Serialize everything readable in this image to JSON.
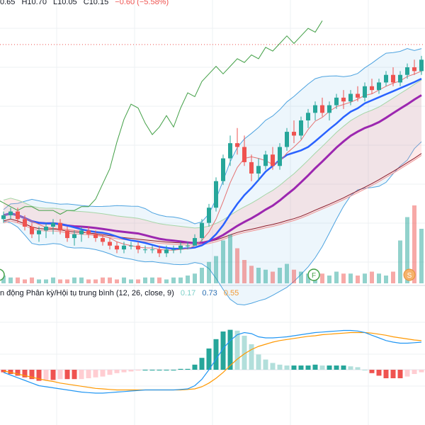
{
  "ohlc": {
    "open": "0.65",
    "high": "H10.70",
    "low": "L10.05",
    "close": "C10.15",
    "change": "−0.60 (−5.58%)"
  },
  "macd": {
    "label": "n động Phân kỳ/Hội tụ trung bình (12, 26, close, 9)",
    "values": [
      "0.17",
      "0.73",
      "0.55"
    ]
  },
  "markers": {
    "f": "F",
    "s": "S"
  },
  "colors": {
    "up": "#26a69a",
    "down": "#ef5350",
    "ma_fast": "#2962ff",
    "ma_slow": "#9c27b0",
    "ma_long": "#8d1c2a",
    "bollinger": "#4da3e0",
    "lagging": "#43a047",
    "macd_line": "#2196f3",
    "signal_line": "#ff9800"
  },
  "chart_data": {
    "type": "line",
    "candles": [
      [
        10.6,
        10.8,
        10.5,
        10.7
      ],
      [
        10.7,
        10.9,
        10.6,
        10.8
      ],
      [
        10.8,
        10.9,
        10.5,
        10.6
      ],
      [
        10.6,
        10.7,
        10.3,
        10.4
      ],
      [
        10.4,
        10.5,
        10.1,
        10.2
      ],
      [
        10.2,
        10.4,
        10.0,
        10.3
      ],
      [
        10.3,
        10.5,
        10.1,
        10.4
      ],
      [
        10.4,
        10.6,
        10.2,
        10.5
      ],
      [
        10.5,
        10.6,
        10.2,
        10.3
      ],
      [
        10.3,
        10.4,
        10.0,
        10.1
      ],
      [
        10.1,
        10.3,
        9.9,
        10.2
      ],
      [
        10.2,
        10.4,
        10.0,
        10.3
      ],
      [
        10.3,
        10.4,
        10.1,
        10.2
      ],
      [
        10.2,
        10.3,
        10.0,
        10.1
      ],
      [
        10.1,
        10.2,
        9.9,
        10.0
      ],
      [
        10.0,
        10.1,
        9.8,
        9.9
      ],
      [
        9.9,
        10.0,
        9.7,
        9.8
      ],
      [
        9.8,
        10.0,
        9.7,
        9.9
      ],
      [
        9.9,
        10.0,
        9.8,
        9.9
      ],
      [
        9.9,
        10.0,
        9.7,
        9.8
      ],
      [
        9.8,
        9.9,
        9.7,
        9.8
      ],
      [
        9.8,
        9.9,
        9.7,
        9.8
      ],
      [
        9.8,
        9.9,
        9.6,
        9.7
      ],
      [
        9.7,
        9.9,
        9.6,
        9.8
      ],
      [
        9.8,
        9.9,
        9.7,
        9.8
      ],
      [
        9.8,
        10.0,
        9.7,
        9.9
      ],
      [
        9.9,
        10.0,
        9.8,
        9.9
      ],
      [
        9.9,
        10.2,
        9.9,
        10.1
      ],
      [
        10.1,
        10.6,
        10.0,
        10.5
      ],
      [
        10.5,
        11.0,
        10.4,
        10.9
      ],
      [
        10.9,
        11.7,
        10.8,
        11.6
      ],
      [
        11.6,
        12.3,
        11.5,
        12.2
      ],
      [
        12.2,
        12.8,
        12.0,
        12.6
      ],
      [
        12.6,
        13.0,
        12.3,
        12.5
      ],
      [
        12.5,
        12.8,
        12.0,
        12.1
      ],
      [
        12.1,
        12.3,
        11.6,
        11.8
      ],
      [
        11.8,
        12.2,
        11.6,
        12.0
      ],
      [
        12.0,
        12.4,
        11.9,
        12.3
      ],
      [
        12.3,
        12.5,
        11.9,
        12.0
      ],
      [
        12.0,
        12.6,
        11.9,
        12.5
      ],
      [
        12.5,
        13.0,
        12.4,
        12.9
      ],
      [
        12.9,
        13.2,
        12.6,
        12.8
      ],
      [
        12.8,
        13.3,
        12.7,
        13.2
      ],
      [
        13.2,
        13.5,
        13.0,
        13.4
      ],
      [
        13.4,
        13.7,
        13.2,
        13.6
      ],
      [
        13.6,
        13.8,
        13.3,
        13.4
      ],
      [
        13.4,
        13.7,
        13.2,
        13.6
      ],
      [
        13.6,
        13.9,
        13.5,
        13.8
      ],
      [
        13.8,
        14.0,
        13.5,
        13.7
      ],
      [
        13.7,
        14.0,
        13.6,
        13.9
      ],
      [
        13.9,
        14.1,
        13.7,
        13.8
      ],
      [
        13.8,
        14.2,
        13.7,
        14.1
      ],
      [
        14.1,
        14.3,
        13.9,
        14.0
      ],
      [
        14.0,
        14.3,
        13.9,
        14.2
      ],
      [
        14.2,
        14.5,
        14.1,
        14.4
      ],
      [
        14.4,
        14.6,
        14.1,
        14.2
      ],
      [
        14.2,
        14.5,
        14.1,
        14.4
      ],
      [
        14.4,
        14.7,
        14.3,
        14.6
      ],
      [
        14.6,
        14.8,
        14.4,
        14.5
      ],
      [
        14.5,
        14.9,
        14.4,
        14.8
      ]
    ],
    "volume": [
      4,
      3,
      3,
      2,
      3,
      2,
      2,
      3,
      2,
      2,
      3,
      3,
      2,
      2,
      3,
      3,
      2,
      3,
      2,
      2,
      3,
      3,
      3,
      2,
      3,
      3,
      4,
      5,
      8,
      11,
      14,
      22,
      25,
      18,
      12,
      9,
      8,
      7,
      6,
      8,
      10,
      7,
      6,
      5,
      6,
      5,
      4,
      6,
      5,
      5,
      4,
      5,
      6,
      5,
      4,
      6,
      22,
      34,
      40,
      28
    ],
    "macd_line": [
      -0.05,
      -0.1,
      -0.15,
      -0.2,
      -0.25,
      -0.3,
      -0.32,
      -0.34,
      -0.36,
      -0.38,
      -0.4,
      -0.42,
      -0.43,
      -0.44,
      -0.44,
      -0.43,
      -0.42,
      -0.41,
      -0.4,
      -0.39,
      -0.38,
      -0.38,
      -0.38,
      -0.38,
      -0.38,
      -0.37,
      -0.36,
      -0.3,
      -0.18,
      0.0,
      0.2,
      0.4,
      0.55,
      0.66,
      0.7,
      0.68,
      0.62,
      0.6,
      0.6,
      0.61,
      0.62,
      0.64,
      0.66,
      0.68,
      0.7,
      0.71,
      0.72,
      0.73,
      0.74,
      0.74,
      0.73,
      0.7,
      0.65,
      0.6,
      0.55,
      0.52,
      0.5,
      0.5,
      0.51,
      0.52
    ],
    "signal_line": [
      -0.02,
      -0.05,
      -0.08,
      -0.11,
      -0.14,
      -0.17,
      -0.2,
      -0.22,
      -0.25,
      -0.27,
      -0.29,
      -0.31,
      -0.33,
      -0.35,
      -0.36,
      -0.37,
      -0.38,
      -0.38,
      -0.38,
      -0.38,
      -0.38,
      -0.38,
      -0.38,
      -0.38,
      -0.38,
      -0.38,
      -0.37,
      -0.36,
      -0.32,
      -0.25,
      -0.16,
      -0.05,
      0.08,
      0.2,
      0.3,
      0.38,
      0.44,
      0.48,
      0.52,
      0.55,
      0.57,
      0.59,
      0.61,
      0.63,
      0.64,
      0.66,
      0.67,
      0.68,
      0.69,
      0.7,
      0.7,
      0.7,
      0.69,
      0.67,
      0.65,
      0.62,
      0.6,
      0.58,
      0.56,
      0.55
    ]
  }
}
